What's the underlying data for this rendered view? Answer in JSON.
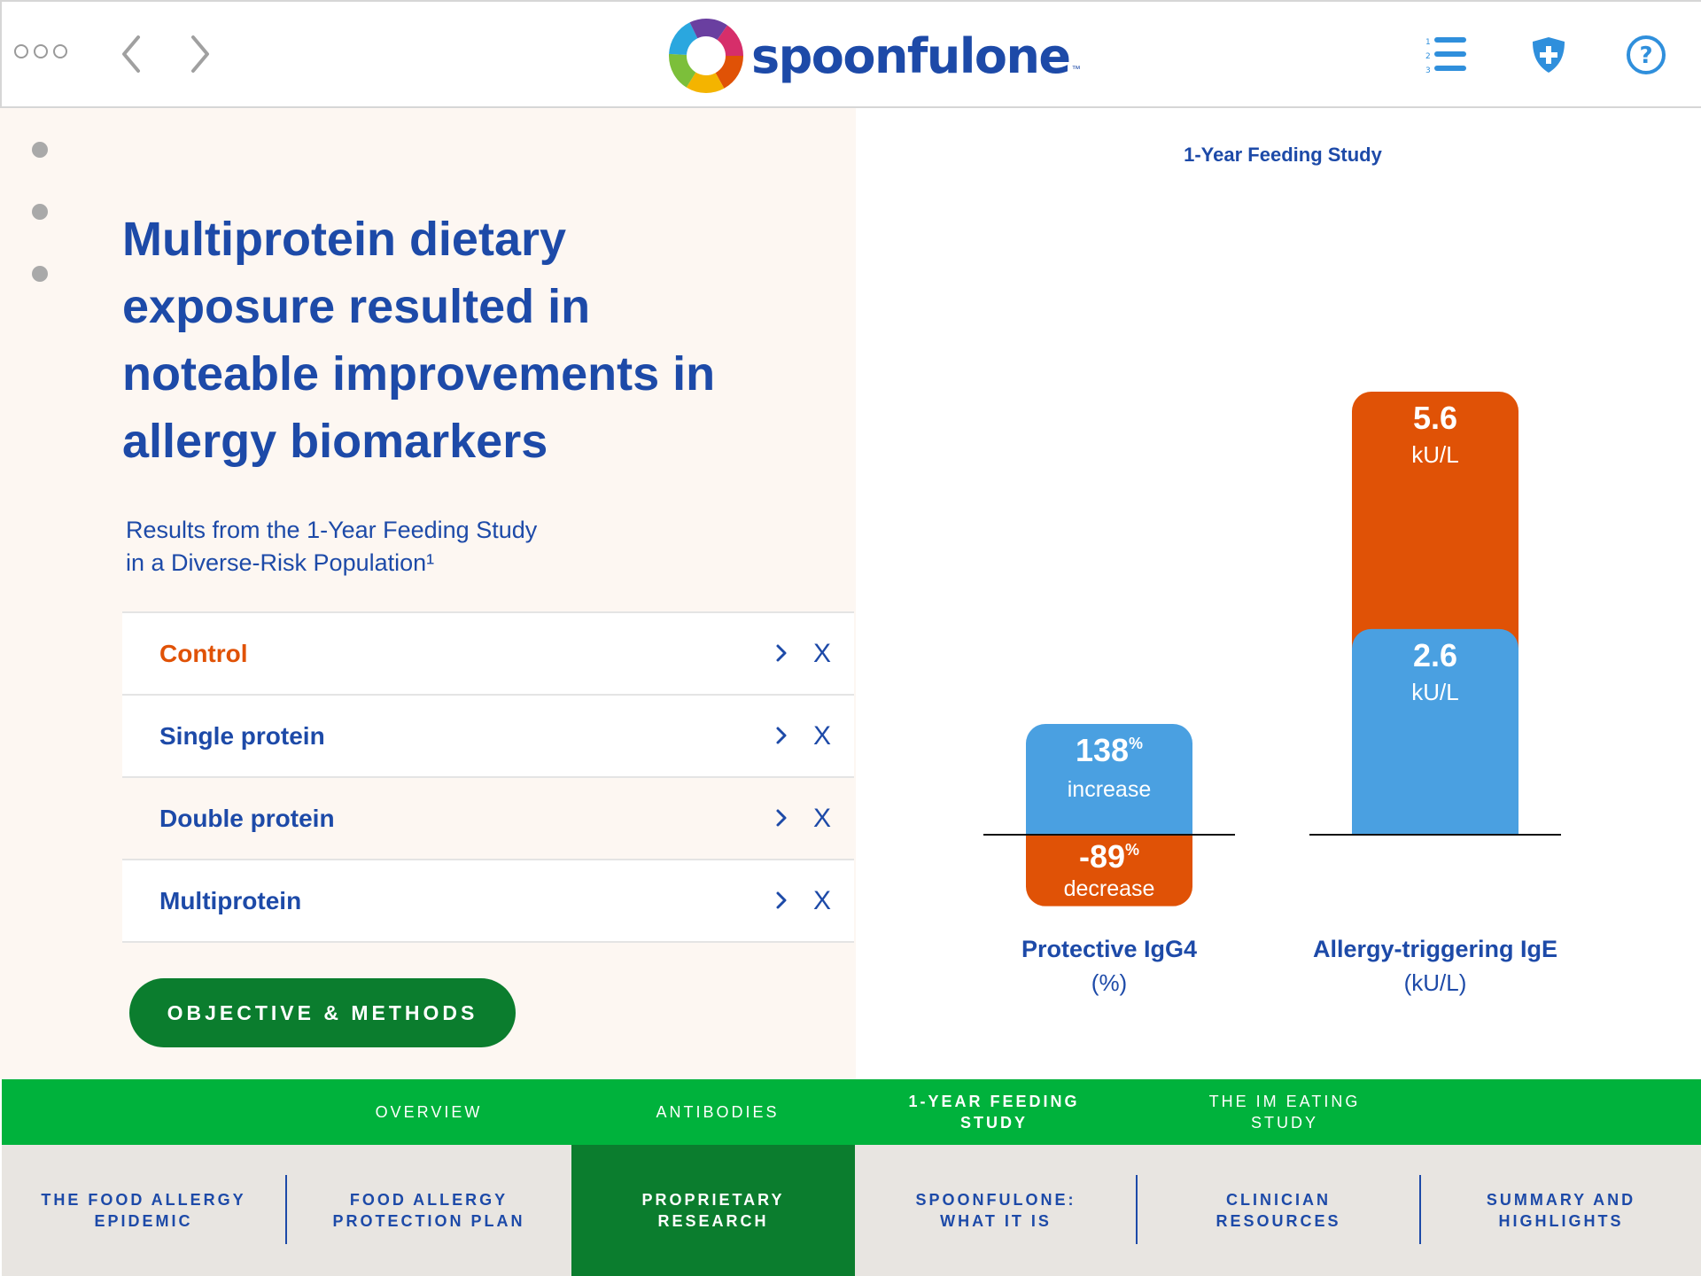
{
  "header": {
    "logo_text": "spoonfulone",
    "trademark": "™",
    "icons": [
      "more-icon",
      "back-arrow-icon",
      "forward-arrow-icon",
      "numbered-list-icon",
      "shield-plus-icon",
      "help-icon"
    ]
  },
  "left_panel": {
    "headline": "Multiprotein dietary exposure resulted in noteable improvements in allergy biomarkers",
    "subhead_line1": "Results from the 1-Year Feeding Study",
    "subhead_line2": "in a Diverse-Risk Population¹",
    "groups": [
      {
        "label": "Control",
        "close": "X"
      },
      {
        "label": "Single protein",
        "close": "X"
      },
      {
        "label": "Double protein",
        "close": "X"
      },
      {
        "label": "Multiprotein",
        "close": "X"
      }
    ],
    "cta_label": "OBJECTIVE & METHODS"
  },
  "chart_data": {
    "type": "bar",
    "title": "1-Year Feeding Study",
    "categories": [
      {
        "name": "Protective IgG4",
        "unit": "(%)"
      },
      {
        "name": "Allergy-triggering IgE",
        "unit": "(kU/L)"
      }
    ],
    "series": [
      {
        "name": "",
        "color": "#4aa0e1",
        "values": [
          138,
          2.6
        ],
        "labels": [
          {
            "value": "138",
            "suffix": "%",
            "sub": "increase"
          },
          {
            "value": "2.6",
            "sub": "kU/L"
          }
        ]
      },
      {
        "name": "",
        "color": "#e05206",
        "values": [
          -89,
          5.6
        ],
        "labels": [
          {
            "value": "-89",
            "suffix": "%",
            "sub": "decrease"
          },
          {
            "value": "5.6",
            "sub": "kU/L"
          }
        ]
      }
    ]
  },
  "tabs": [
    {
      "label": "OVERVIEW",
      "active": false
    },
    {
      "label": "ANTIBODIES",
      "active": false
    },
    {
      "label": "1-YEAR FEEDING STUDY",
      "active": true
    },
    {
      "label": "THE IM EATING STUDY",
      "active": false
    }
  ],
  "sections": [
    {
      "label": "THE FOOD ALLERGY EPIDEMIC",
      "active": false
    },
    {
      "label": "FOOD ALLERGY PROTECTION PLAN",
      "active": false
    },
    {
      "label": "PROPRIETARY RESEARCH",
      "active": true
    },
    {
      "label": "SPOONFULONE: WHAT IT IS",
      "active": false
    },
    {
      "label": "CLINICIAN RESOURCES",
      "active": false
    },
    {
      "label": "SUMMARY AND HIGHLIGHTS",
      "active": false
    }
  ],
  "colors": {
    "brand_blue": "#1d4aa8",
    "accent_orange": "#e05206",
    "bar_blue": "#4aa0e1",
    "tab_green": "#00b23c",
    "dark_green": "#0b7d2e"
  }
}
